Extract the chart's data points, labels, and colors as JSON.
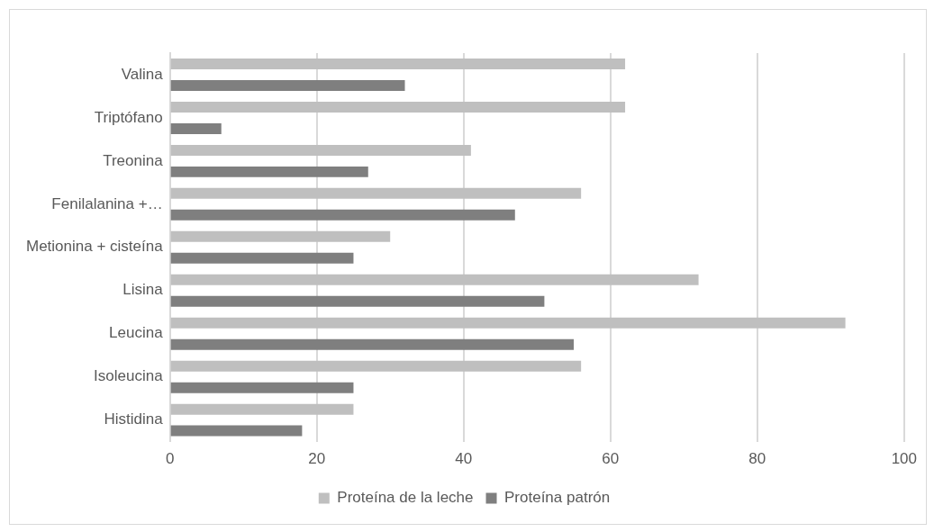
{
  "chart_data": {
    "type": "bar",
    "orientation": "horizontal",
    "categories": [
      "Valina",
      "Triptófano",
      "Treonina",
      "Fenilalanina +…",
      "Metionina + cisteína",
      "Lisina",
      "Leucina",
      "Isoleucina",
      "Histidina"
    ],
    "series": [
      {
        "name": "Proteína de la leche",
        "color": "#bfbfbf",
        "values": [
          62,
          62,
          41,
          56,
          30,
          72,
          92,
          56,
          25
        ]
      },
      {
        "name": "Proteína patrón",
        "color": "#7f7f7f",
        "values": [
          32,
          7,
          27,
          47,
          25,
          51,
          55,
          25,
          18
        ]
      }
    ],
    "xlim": [
      0,
      100
    ],
    "xticks": [
      0,
      20,
      40,
      60,
      80,
      100
    ],
    "grid": "x",
    "legend": "bottom"
  }
}
